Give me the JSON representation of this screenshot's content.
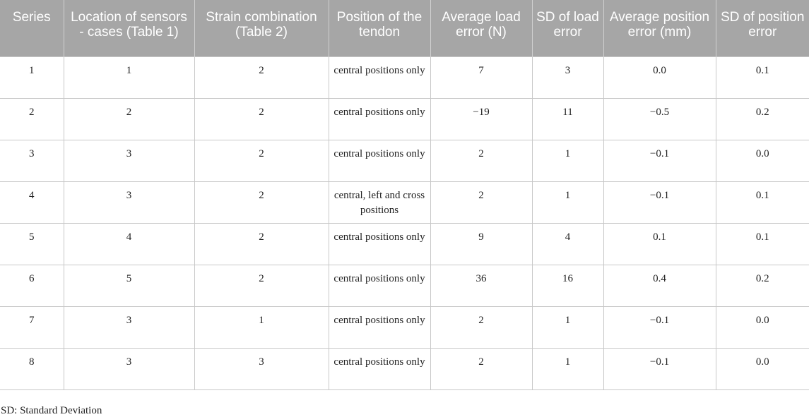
{
  "table": {
    "headers": [
      "Series",
      "Location of sensors - cases (Table 1)",
      "Strain combination (Table 2)",
      "Position of the tendon",
      "Average load error (N)",
      "SD of load error",
      "Average position error (mm)",
      "SD of position error"
    ],
    "rows": [
      [
        "1",
        "1",
        "2",
        "central positions only",
        "7",
        "3",
        "0.0",
        "0.1"
      ],
      [
        "2",
        "2",
        "2",
        "central positions only",
        "−19",
        "11",
        "−0.5",
        "0.2"
      ],
      [
        "3",
        "3",
        "2",
        "central positions only",
        "2",
        "1",
        "−0.1",
        "0.0"
      ],
      [
        "4",
        "3",
        "2",
        "central, left and cross positions",
        "2",
        "1",
        "−0.1",
        "0.1"
      ],
      [
        "5",
        "4",
        "2",
        "central positions only",
        "9",
        "4",
        "0.1",
        "0.1"
      ],
      [
        "6",
        "5",
        "2",
        "central positions only",
        "36",
        "16",
        "0.4",
        "0.2"
      ],
      [
        "7",
        "3",
        "1",
        "central positions only",
        "2",
        "1",
        "−0.1",
        "0.0"
      ],
      [
        "8",
        "3",
        "3",
        "central positions only",
        "2",
        "1",
        "−0.1",
        "0.0"
      ]
    ]
  },
  "footnote": "SD: Standard Deviation",
  "colors": {
    "header_background": "#a6a6a6",
    "header_text": "#ffffff",
    "grid_line": "#c8c8c8"
  }
}
